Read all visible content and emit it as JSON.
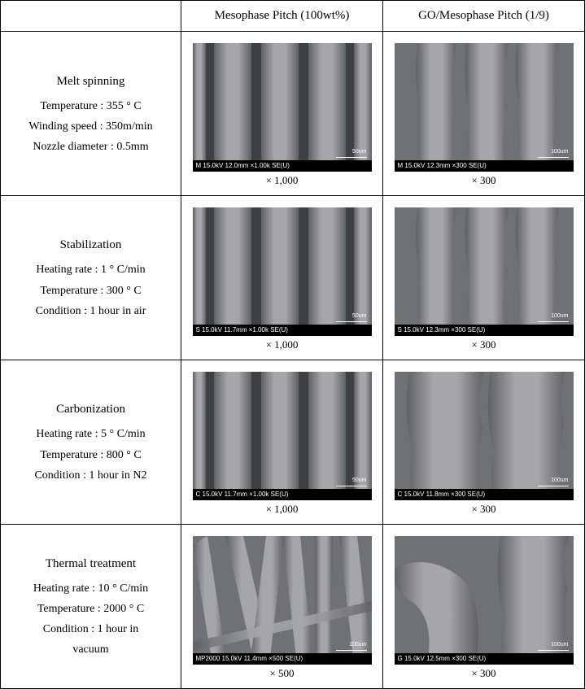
{
  "header": {
    "col1": "",
    "col2": "Mesophase Pitch (100wt%)",
    "col3": "GO/Mesophase Pitch (1/9)"
  },
  "rows": [
    {
      "title": "Melt spinning",
      "lines": [
        "Temperature : 355 ° C",
        "Winding speed : 350m/min",
        "Nozzle diameter : 0.5mm"
      ],
      "imgA": {
        "mag": "× 1,000",
        "caption": "M 15.0kV 12.0mm ×1.00k SE(U)",
        "scale": "50um",
        "type": "straight4"
      },
      "imgB": {
        "mag": "× 300",
        "caption": "M 15.0kV 12.3mm ×300 SE(U)",
        "scale": "100um",
        "type": "rough3"
      }
    },
    {
      "title": "Stabilization",
      "lines": [
        "Heating rate : 1 ° C/min",
        "Temperature : 300 ° C",
        "Condition : 1 hour in air"
      ],
      "imgA": {
        "mag": "× 1,000",
        "caption": "S 15.0kV 11.7mm ×1.00k SE(U)",
        "scale": "50um",
        "type": "straight4"
      },
      "imgB": {
        "mag": "× 300",
        "caption": "S 15.0kV 12.3mm ×300 SE(U)",
        "scale": "100um",
        "type": "rough3"
      }
    },
    {
      "title": "Carbonization",
      "lines": [
        "Heating rate : 5 ° C/min",
        "Temperature : 800 ° C",
        "Condition : 1 hour in N2"
      ],
      "imgA": {
        "mag": "× 1,000",
        "caption": "C 15.0kV 11.7mm ×1.00k SE(U)",
        "scale": "50um",
        "type": "straight4"
      },
      "imgB": {
        "mag": "× 300",
        "caption": "C 15.0kV 11.8mm ×300 SE(U)",
        "scale": "100um",
        "type": "rough2big"
      }
    },
    {
      "title": "Thermal treatment",
      "lines": [
        "Heating rate : 10 ° C/min",
        "Temperature : 2000 ° C",
        "Condition : 1 hour in",
        "vacuum"
      ],
      "imgA": {
        "mag": "× 500",
        "caption": "MP2000 15.0kV 11.4mm ×500 SE(U)",
        "scale": "100um",
        "type": "angled"
      },
      "imgB": {
        "mag": "× 300",
        "caption": "G 15.0kV 12.5mm ×300 SE(U)",
        "scale": "100um",
        "type": "roughcurve"
      }
    }
  ],
  "colors": {
    "sem_bg": "#6f7275",
    "sem_fiber_light": "#a4a6a9",
    "sem_fiber_mid": "#8b8e91",
    "sem_fiber_dark": "#5e6164",
    "sem_shadow": "#3e4143"
  }
}
